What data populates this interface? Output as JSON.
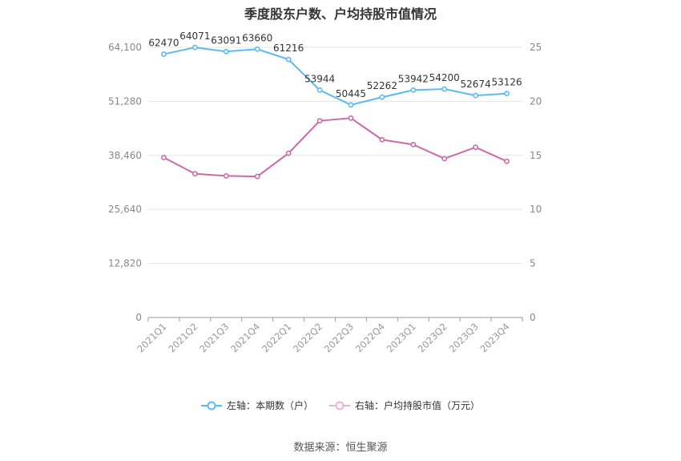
{
  "chart_data": {
    "type": "line",
    "title": "季度股东户数、户均持股市值情况",
    "categories": [
      "2021Q1",
      "2021Q2",
      "2021Q3",
      "2021Q4",
      "2022Q1",
      "2022Q2",
      "2022Q3",
      "2022Q4",
      "2023Q1",
      "2023Q2",
      "2023Q3",
      "2023Q4"
    ],
    "left_axis": {
      "ticks": [
        "0",
        "12,820",
        "25,640",
        "38,460",
        "51,280",
        "64,100"
      ],
      "ylim": [
        0,
        64100
      ]
    },
    "right_axis": {
      "ticks": [
        "0",
        "5",
        "10",
        "15",
        "20",
        "25"
      ],
      "ylim": [
        0,
        25
      ]
    },
    "series": [
      {
        "name": "左轴：本期数（户）",
        "axis": "left",
        "color": "#5bbcf0",
        "values": [
          62470,
          64071,
          63091,
          63660,
          61216,
          53944,
          50445,
          52262,
          53942,
          54200,
          52674,
          53126
        ],
        "labels": [
          "62470",
          "64071",
          "63091",
          "63660",
          "61216",
          "53944",
          "50445",
          "52262",
          "53942",
          "54200",
          "52674",
          "53126"
        ]
      },
      {
        "name": "右轴：户均持股市值（万元）",
        "axis": "right",
        "color": "#cc6aaa",
        "values": [
          14.8,
          13.3,
          13.1,
          13.05,
          15.2,
          18.2,
          18.45,
          16.45,
          16.0,
          14.7,
          15.75,
          14.45
        ]
      }
    ],
    "grid": true,
    "legend_position": "bottom"
  },
  "footer": {
    "source": "数据来源：恒生聚源"
  }
}
